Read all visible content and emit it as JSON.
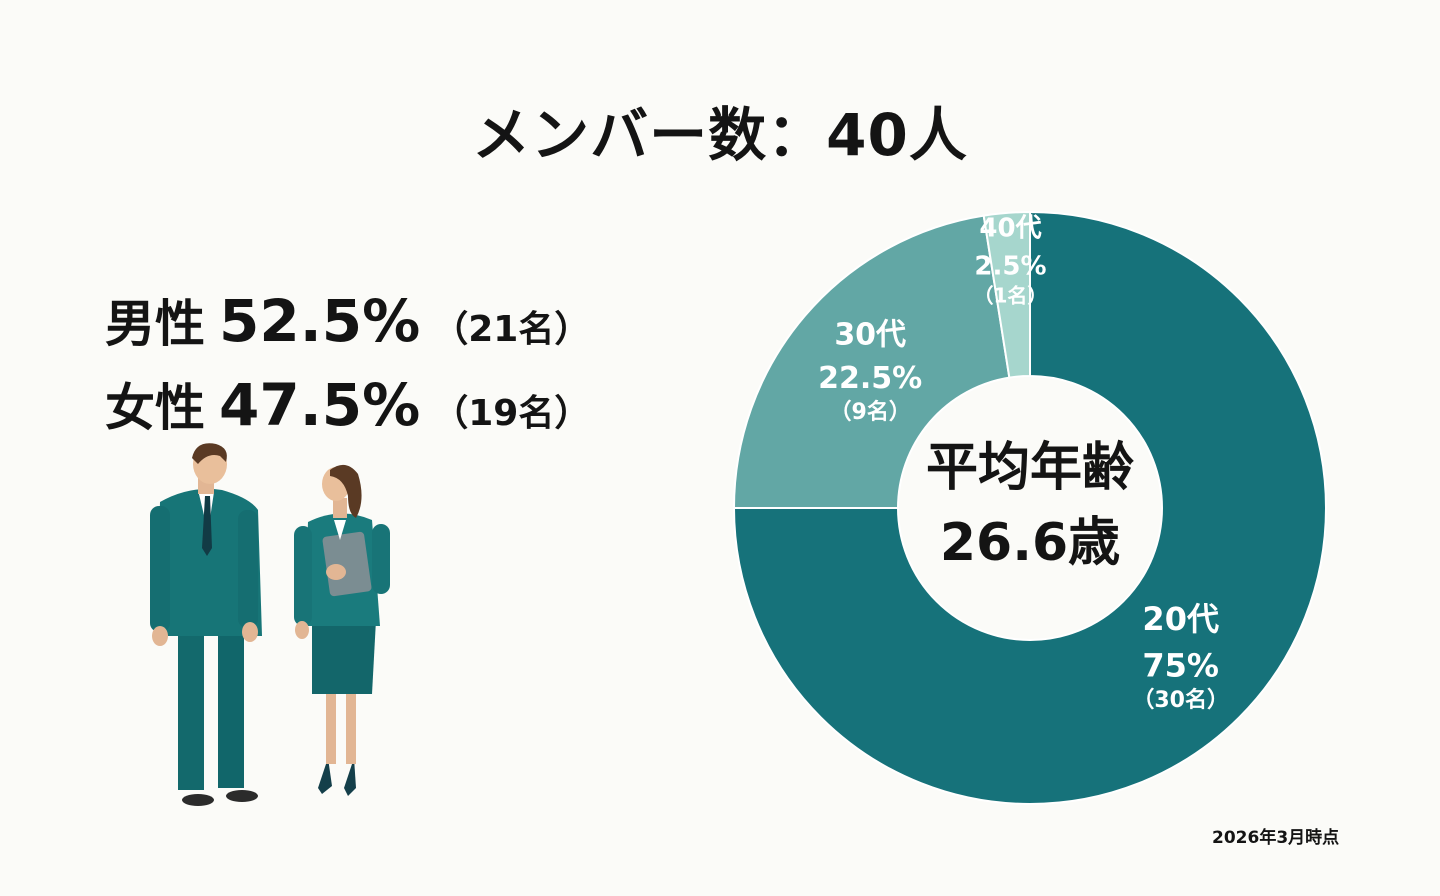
{
  "title": "メンバー数：40人",
  "gender": {
    "male": {
      "label": "男性",
      "percent": "52.5%",
      "count": "（21名）"
    },
    "female": {
      "label": "女性",
      "percent": "47.5%",
      "count": "（19名）"
    }
  },
  "chart_data": {
    "type": "pie",
    "categories": [
      "20代",
      "30代",
      "40代"
    ],
    "values": [
      75,
      22.5,
      2.5
    ],
    "value_labels": [
      "75%",
      "22.5%",
      "2.5%"
    ],
    "counts": [
      "（30名）",
      "（9名）",
      "（1名）"
    ],
    "colors": [
      "#16727a",
      "#62a7a5",
      "#a6d6cd"
    ],
    "center_label": "平均年齢",
    "center_value": "26.6歳"
  },
  "footnote": "2026年3月時点"
}
